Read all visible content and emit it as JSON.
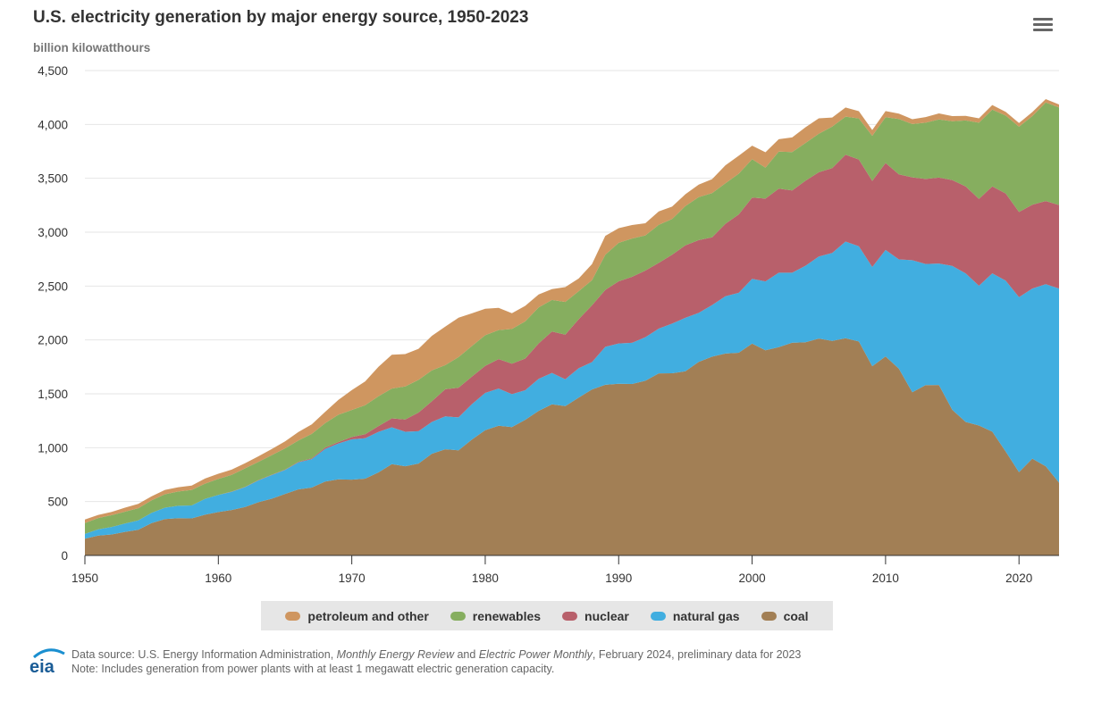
{
  "header": {
    "title": "U.S. electricity generation by major energy source, 1950-2023",
    "subtitle": "billion kilowatthours",
    "menu_icon": "hamburger-menu-icon"
  },
  "footer": {
    "logo": "eia",
    "source_prefix": "Data source: U.S. Energy Information Administration, ",
    "source_pub1": "Monthly Energy Review",
    "source_and": " and ",
    "source_pub2": "Electric Power Monthly",
    "source_suffix": ", February 2024, preliminary data for 2023",
    "note": "Note: Includes generation from power plants with at least 1 megawatt electric generation capacity."
  },
  "chart_data": {
    "type": "area",
    "stacked": true,
    "title": "U.S. electricity generation by major energy source, 1950-2023",
    "ylabel": "billion kilowatthours",
    "ylim": [
      0,
      4500
    ],
    "xlim": [
      1950,
      2023
    ],
    "yticks": [
      0,
      500,
      1000,
      1500,
      2000,
      2500,
      3000,
      3500,
      4000,
      4500
    ],
    "ytick_labels": [
      "0",
      "500",
      "1,000",
      "1,500",
      "2,000",
      "2,500",
      "3,000",
      "3,500",
      "4,000",
      "4,500"
    ],
    "xticks": [
      1950,
      1960,
      1970,
      1980,
      1990,
      2000,
      2010,
      2020
    ],
    "xtick_labels": [
      "1950",
      "1960",
      "1970",
      "1980",
      "1990",
      "2000",
      "2010",
      "2020"
    ],
    "grid": "horizontal",
    "legend": "bottom",
    "x_start": 1950,
    "series": [
      {
        "name": "coal",
        "color": "#a27f55",
        "values": [
          155,
          185,
          195,
          219,
          239,
          301,
          338,
          346,
          344,
          378,
          403,
          422,
          450,
          494,
          526,
          571,
          613,
          630,
          685,
          706,
          704,
          713,
          771,
          848,
          828,
          853,
          944,
          985,
          976,
          1075,
          1162,
          1203,
          1192,
          1259,
          1342,
          1402,
          1386,
          1464,
          1541,
          1584,
          1594,
          1591,
          1621,
          1690,
          1691,
          1709,
          1796,
          1845,
          1874,
          1881,
          1966,
          1904,
          1933,
          1974,
          1978,
          2013,
          1991,
          2016,
          1986,
          1756,
          1847,
          1733,
          1514,
          1581,
          1582,
          1352,
          1239,
          1206,
          1149,
          965,
          773,
          898,
          828,
          675
        ]
      },
      {
        "name": "natural gas",
        "color": "#41aee0",
        "values": [
          45,
          57,
          69,
          77,
          87,
          95,
          105,
          115,
          120,
          147,
          158,
          169,
          184,
          202,
          220,
          222,
          251,
          264,
          304,
          333,
          373,
          374,
          376,
          341,
          320,
          300,
          295,
          306,
          305,
          329,
          346,
          346,
          305,
          274,
          297,
          292,
          249,
          273,
          253,
          352,
          373,
          382,
          404,
          415,
          460,
          496,
          455,
          479,
          531,
          556,
          601,
          639,
          691,
          650,
          710,
          761,
          817,
          897,
          883,
          921,
          988,
          1014,
          1226,
          1124,
          1127,
          1335,
          1379,
          1297,
          1469,
          1586,
          1624,
          1579,
          1689,
          1802
        ]
      },
      {
        "name": "nuclear",
        "color": "#b8606b",
        "values": [
          0,
          0,
          0,
          0,
          0,
          0,
          0,
          0,
          0.2,
          0.2,
          0.5,
          1.7,
          2.3,
          3.2,
          3.3,
          3.7,
          5.5,
          7.7,
          12.5,
          13.9,
          21.8,
          38.1,
          54.1,
          83.5,
          114,
          173,
          191,
          251,
          276,
          255,
          251,
          273,
          283,
          294,
          328,
          384,
          414,
          455,
          527,
          529,
          577,
          613,
          619,
          610,
          640,
          673,
          675,
          629,
          673,
          728,
          754,
          769,
          780,
          764,
          789,
          782,
          787,
          806,
          806,
          799,
          807,
          790,
          769,
          789,
          797,
          797,
          806,
          805,
          807,
          809,
          790,
          778,
          772,
          775
        ]
      },
      {
        "name": "renewables",
        "color": "#86ae5f",
        "values": [
          101,
          105,
          110,
          110,
          112,
          116,
          125,
          132,
          144,
          141,
          149,
          155,
          172,
          169,
          181,
          197,
          198,
          226,
          226,
          253,
          251,
          270,
          276,
          276,
          306,
          303,
          288,
          224,
          284,
          284,
          285,
          270,
          322,
          345,
          335,
          293,
          304,
          260,
          234,
          325,
          357,
          355,
          326,
          353,
          332,
          364,
          400,
          409,
          375,
          378,
          356,
          287,
          344,
          356,
          351,
          358,
          385,
          353,
          381,
          418,
          425,
          513,
          495,
          522,
          540,
          545,
          613,
          708,
          713,
          722,
          792,
          822,
          914,
          905
        ]
      },
      {
        "name": "petroleum and other",
        "color": "#cf9660",
        "values": [
          33,
          29,
          30,
          37,
          40,
          37,
          40,
          40,
          40,
          47,
          48,
          49,
          48,
          52,
          57,
          65,
          79,
          89,
          104,
          138,
          184,
          220,
          274,
          314,
          301,
          289,
          320,
          358,
          365,
          304,
          246,
          206,
          146,
          144,
          120,
          100,
          137,
          118,
          149,
          176,
          136,
          125,
          113,
          125,
          114,
          110,
          116,
          130,
          168,
          166,
          126,
          143,
          115,
          135,
          146,
          143,
          84,
          85,
          67,
          54,
          57,
          50,
          44,
          52,
          56,
          48,
          42,
          41,
          42,
          35,
          34,
          38,
          32,
          28
        ]
      }
    ]
  }
}
